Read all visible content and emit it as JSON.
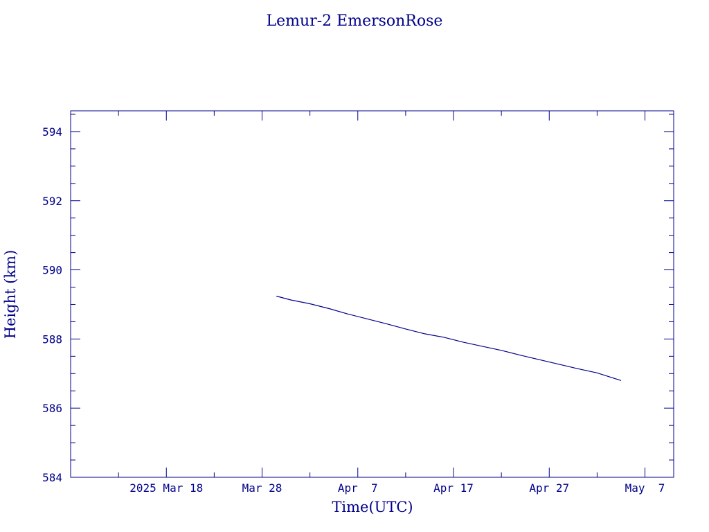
{
  "colors": {
    "axis": "#00008b",
    "series": "#00008b",
    "background": "#ffffff"
  },
  "chart_data": {
    "type": "line",
    "title": "Lemur-2 EmersonRose",
    "xlabel": "Time(UTC)",
    "ylabel": "Height (km)",
    "xlim": [
      "2025-03-08",
      "2025-05-10"
    ],
    "ylim": [
      584,
      594.6
    ],
    "grid": false,
    "x_ticks": [
      {
        "date": "2025-03-18",
        "label": "2025 Mar 18"
      },
      {
        "date": "2025-03-28",
        "label": "Mar 28"
      },
      {
        "date": "2025-04-07",
        "label": "Apr  7"
      },
      {
        "date": "2025-04-17",
        "label": "Apr 17"
      },
      {
        "date": "2025-04-27",
        "label": "Apr 27"
      },
      {
        "date": "2025-05-07",
        "label": "May  7"
      }
    ],
    "y_ticks": [
      584,
      586,
      588,
      590,
      592,
      594
    ],
    "series": [
      {
        "x": [
          "2025-03-29T12:00",
          "2025-03-31",
          "2025-04-02",
          "2025-04-04",
          "2025-04-06",
          "2025-04-08",
          "2025-04-10",
          "2025-04-12",
          "2025-04-14",
          "2025-04-16",
          "2025-04-18",
          "2025-04-20",
          "2025-04-22",
          "2025-04-24",
          "2025-04-26",
          "2025-04-28",
          "2025-04-30",
          "2025-05-02",
          "2025-05-04T12:00"
        ],
        "y": [
          589.24,
          589.13,
          589.02,
          588.88,
          588.72,
          588.58,
          588.44,
          588.29,
          588.15,
          588.05,
          587.91,
          587.79,
          587.67,
          587.53,
          587.4,
          587.27,
          587.14,
          587.02,
          586.8
        ]
      }
    ]
  }
}
